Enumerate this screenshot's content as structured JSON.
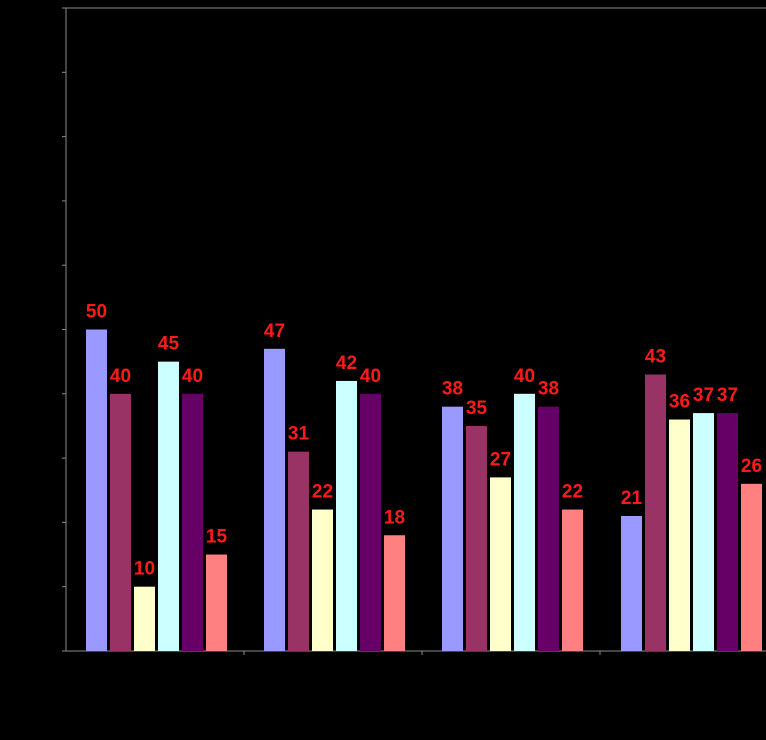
{
  "chart_data": {
    "type": "bar",
    "title": "",
    "xlabel": "",
    "ylabel": "",
    "ylim": [
      0,
      100
    ],
    "grid": false,
    "categories": [
      "",
      "",
      "",
      ""
    ],
    "series": [
      {
        "color": "#9999ff",
        "values": [
          50,
          47,
          38,
          21
        ]
      },
      {
        "color": "#993366",
        "values": [
          40,
          31,
          35,
          43
        ]
      },
      {
        "color": "#ffffcc",
        "values": [
          10,
          22,
          27,
          36
        ]
      },
      {
        "color": "#ccffff",
        "values": [
          45,
          42,
          40,
          37
        ]
      },
      {
        "color": "#660066",
        "values": [
          40,
          40,
          38,
          37
        ]
      },
      {
        "color": "#ff8080",
        "values": [
          15,
          18,
          22,
          26
        ]
      }
    ],
    "background": "#000000",
    "label_color": "#ff1a1a"
  }
}
